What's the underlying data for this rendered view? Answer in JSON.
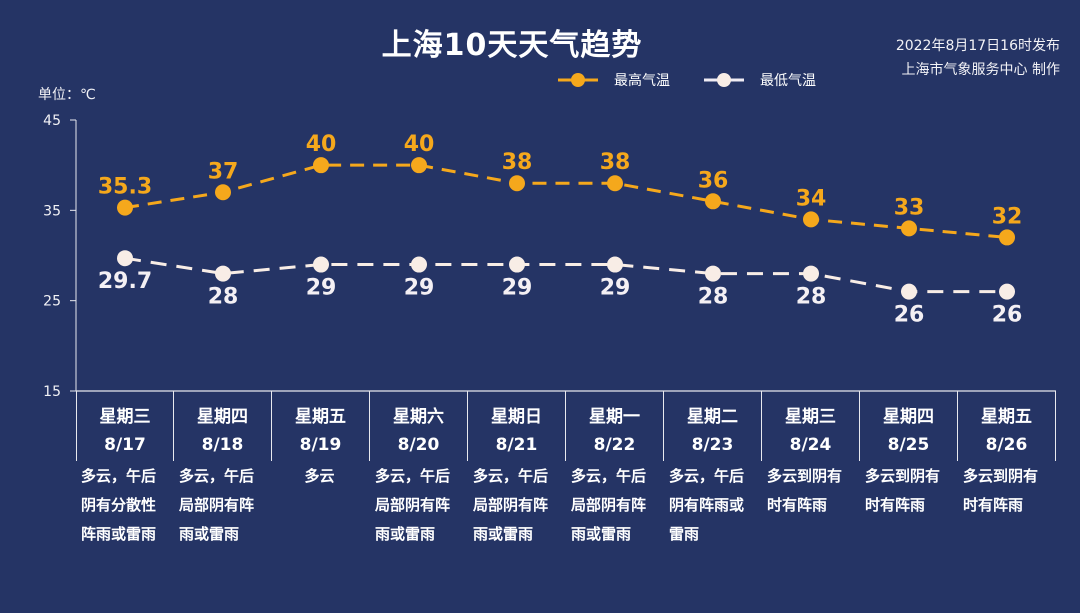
{
  "header": {
    "title": "上海10天天气趋势",
    "publish_time": "2022年8月17日16时发布",
    "producer": "上海市气象服务中心 制作"
  },
  "unit_label": "单位：℃",
  "legend": [
    {
      "label": "最高气温",
      "color": "#F5A81C",
      "icon": "orange-dot-line-icon"
    },
    {
      "label": "最低气温",
      "color": "#F8EDE6",
      "icon": "white-dot-line-icon"
    }
  ],
  "colors": {
    "background": "#253465",
    "high": "#F5A81C",
    "low": "#F8EDE6",
    "axis": "#E8E8EE"
  },
  "days": [
    {
      "weekday": "星期三",
      "date": "8/17",
      "desc": [
        "多云，午后",
        "阴有分散性",
        "阵雨或雷雨"
      ]
    },
    {
      "weekday": "星期四",
      "date": "8/18",
      "desc": [
        "多云，午后",
        "局部阴有阵",
        "雨或雷雨"
      ]
    },
    {
      "weekday": "星期五",
      "date": "8/19",
      "desc": [
        "多云"
      ]
    },
    {
      "weekday": "星期六",
      "date": "8/20",
      "desc": [
        "多云，午后",
        "局部阴有阵",
        "雨或雷雨"
      ]
    },
    {
      "weekday": "星期日",
      "date": "8/21",
      "desc": [
        "多云，午后",
        "局部阴有阵",
        "雨或雷雨"
      ]
    },
    {
      "weekday": "星期一",
      "date": "8/22",
      "desc": [
        "多云，午后",
        "局部阴有阵",
        "雨或雷雨"
      ]
    },
    {
      "weekday": "星期二",
      "date": "8/23",
      "desc": [
        "多云，午后",
        "阴有阵雨或",
        "雷雨"
      ]
    },
    {
      "weekday": "星期三",
      "date": "8/24",
      "desc": [
        "多云到阴有",
        "时有阵雨"
      ]
    },
    {
      "weekday": "星期四",
      "date": "8/25",
      "desc": [
        "多云到阴有",
        "时有阵雨"
      ]
    },
    {
      "weekday": "星期五",
      "date": "8/26",
      "desc": [
        "多云到阴有",
        "时有阵雨"
      ]
    }
  ],
  "chart_data": {
    "type": "line",
    "title": "上海10天天气趋势",
    "xlabel": "",
    "ylabel": "单位：℃",
    "categories": [
      "8/17",
      "8/18",
      "8/19",
      "8/20",
      "8/21",
      "8/22",
      "8/23",
      "8/24",
      "8/25",
      "8/26"
    ],
    "series": [
      {
        "name": "最高气温",
        "values": [
          35.3,
          37,
          40,
          40,
          38,
          38,
          36,
          34,
          33,
          32
        ],
        "labels": [
          "35.3",
          "37",
          "40",
          "40",
          "38",
          "38",
          "36",
          "34",
          "33",
          "32"
        ],
        "color": "#F5A81C",
        "dash": true
      },
      {
        "name": "最低气温",
        "values": [
          29.7,
          28,
          29,
          29,
          29,
          29,
          28,
          28,
          26,
          26
        ],
        "labels": [
          "29.7",
          "28",
          "29",
          "29",
          "29",
          "29",
          "28",
          "28",
          "26",
          "26"
        ],
        "color": "#F8EDE6",
        "dash": true
      }
    ],
    "yticks": [
      15,
      25,
      35,
      45
    ],
    "ylim": [
      15,
      45
    ],
    "grid": false,
    "legend_position": "top"
  }
}
